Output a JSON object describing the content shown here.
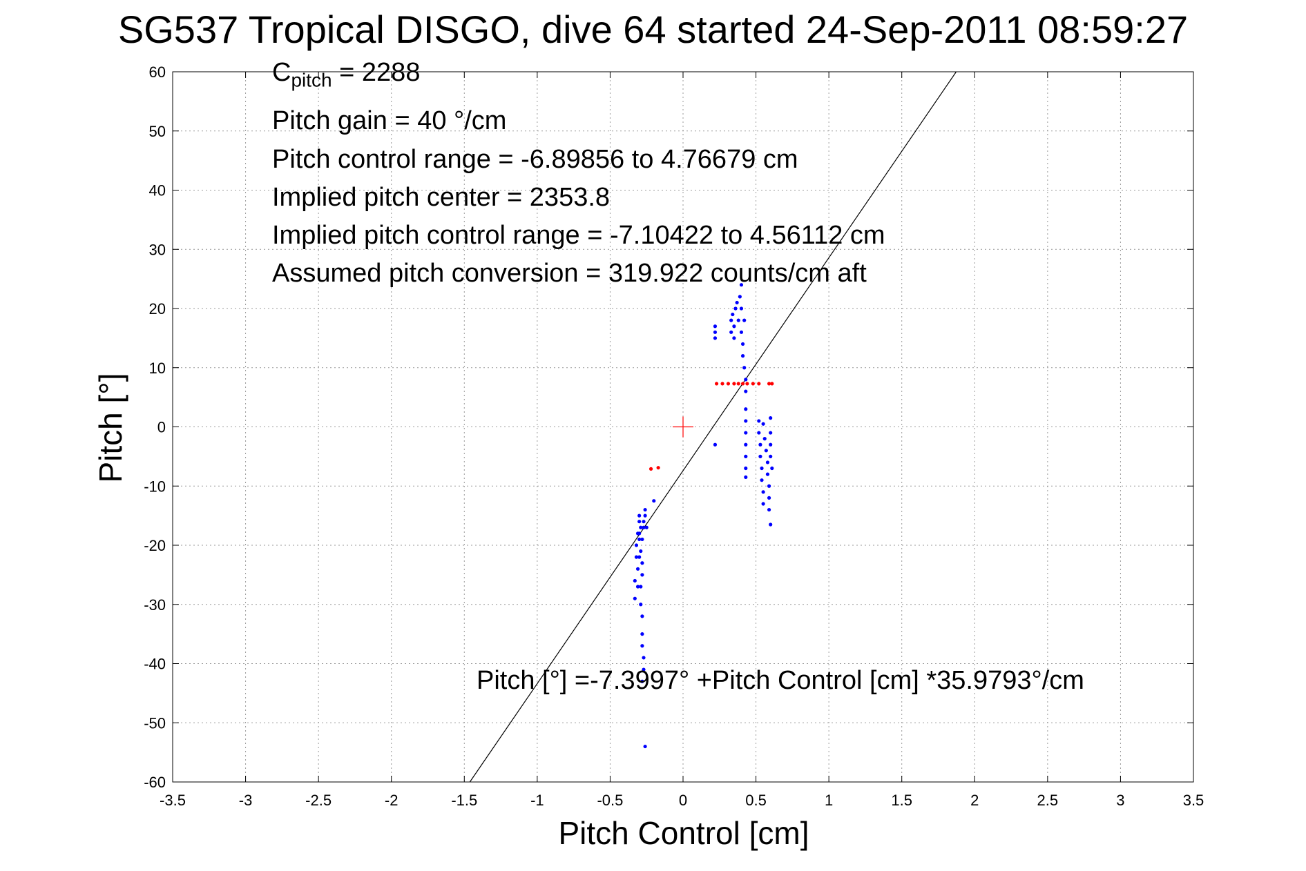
{
  "title": "SG537 Tropical DISGO, dive 64 started 24-Sep-2011 08:59:27",
  "annotations": {
    "c_pitch_prefix": "C",
    "c_pitch_sub": "pitch",
    "c_pitch_value": " = 2288",
    "pitch_gain": "Pitch gain = 40 °/cm",
    "pitch_control_range": "Pitch control range = -6.89856 to 4.76679 cm",
    "implied_pitch_center": "Implied pitch center = 2353.8",
    "implied_pitch_control_range": "Implied pitch control range = -7.10422 to 4.56112 cm",
    "assumed_pitch_conversion": "Assumed pitch conversion = 319.922 counts/cm aft",
    "fit_equation": "Pitch [°] =-7.3997° +Pitch Control [cm] *35.9793°/cm"
  },
  "chart_data": {
    "type": "scatter",
    "title": "SG537 Tropical DISGO, dive 64 started 24-Sep-2011 08:59:27",
    "xlabel": "Pitch Control [cm]",
    "ylabel": "Pitch [°]",
    "xlim": [
      -3.5,
      3.5
    ],
    "ylim": [
      -60,
      60
    ],
    "xticks": [
      -3.5,
      -3,
      -2.5,
      -2,
      -1.5,
      -1,
      -0.5,
      0,
      0.5,
      1,
      1.5,
      2,
      2.5,
      3,
      3.5
    ],
    "xtick_labels": [
      "-3.5",
      "-3",
      "-2.5",
      "-2",
      "-1.5",
      "-1",
      "-0.5",
      "0",
      "0.5",
      "1",
      "1.5",
      "2",
      "2.5",
      "3",
      "3.5"
    ],
    "yticks": [
      -60,
      -50,
      -40,
      -30,
      -20,
      -10,
      0,
      10,
      20,
      30,
      40,
      50,
      60
    ],
    "ytick_labels": [
      "-60",
      "-50",
      "-40",
      "-30",
      "-20",
      "-10",
      "0",
      "10",
      "20",
      "30",
      "40",
      "50",
      "60"
    ],
    "grid": true,
    "colors": {
      "blue": "#0000ff",
      "red": "#ff0000",
      "line": "#000000",
      "grid": "#999999"
    },
    "fit_line": {
      "intercept": -7.3997,
      "slope": 35.9793
    },
    "center_marker": {
      "x": 0,
      "y": 0,
      "color": "#ff0000"
    },
    "series": [
      {
        "color": "#0000ff",
        "points": [
          [
            -0.33,
            -29
          ],
          [
            -0.33,
            -26
          ],
          [
            -0.32,
            -22
          ],
          [
            -0.32,
            -20
          ],
          [
            -0.31,
            -18
          ],
          [
            -0.3,
            -16
          ],
          [
            -0.3,
            -18
          ],
          [
            -0.29,
            -17
          ],
          [
            -0.28,
            -19
          ],
          [
            -0.27,
            -17
          ],
          [
            -0.27,
            -16
          ],
          [
            -0.26,
            -14
          ],
          [
            -0.26,
            -15
          ],
          [
            -0.25,
            -17
          ],
          [
            -0.29,
            -21
          ],
          [
            -0.3,
            -22
          ],
          [
            -0.28,
            -23
          ],
          [
            -0.28,
            -25
          ],
          [
            -0.29,
            -27
          ],
          [
            -0.29,
            -30
          ],
          [
            -0.28,
            -32
          ],
          [
            -0.28,
            -35
          ],
          [
            -0.28,
            -37
          ],
          [
            -0.27,
            -39
          ],
          [
            -0.27,
            -41
          ],
          [
            -0.28,
            -43
          ],
          [
            -0.31,
            -24
          ],
          [
            -0.31,
            -27
          ],
          [
            -0.3,
            -19
          ],
          [
            -0.3,
            -15
          ],
          [
            -0.26,
            -54
          ],
          [
            -0.2,
            -12.5
          ],
          [
            0.22,
            17
          ],
          [
            0.22,
            15
          ],
          [
            0.22,
            16
          ],
          [
            0.33,
            18
          ],
          [
            0.33,
            16
          ],
          [
            0.34,
            19
          ],
          [
            0.35,
            17
          ],
          [
            0.35,
            15
          ],
          [
            0.36,
            20
          ],
          [
            0.37,
            21
          ],
          [
            0.38,
            18
          ],
          [
            0.39,
            22
          ],
          [
            0.4,
            24
          ],
          [
            0.4,
            20
          ],
          [
            0.4,
            16
          ],
          [
            0.41,
            14
          ],
          [
            0.41,
            12
          ],
          [
            0.42,
            18
          ],
          [
            0.42,
            10
          ],
          [
            0.43,
            8
          ],
          [
            0.43,
            6
          ],
          [
            0.43,
            3
          ],
          [
            0.43,
            1
          ],
          [
            0.43,
            -1
          ],
          [
            0.43,
            -3
          ],
          [
            0.43,
            -5
          ],
          [
            0.43,
            -7
          ],
          [
            0.43,
            -8.5
          ],
          [
            0.22,
            -3
          ],
          [
            0.52,
            1
          ],
          [
            0.52,
            -1
          ],
          [
            0.53,
            -3
          ],
          [
            0.53,
            -5
          ],
          [
            0.54,
            -7
          ],
          [
            0.54,
            -9
          ],
          [
            0.55,
            -11
          ],
          [
            0.55,
            -13
          ],
          [
            0.55,
            0.5
          ],
          [
            0.56,
            -2
          ],
          [
            0.57,
            -4
          ],
          [
            0.58,
            -6
          ],
          [
            0.58,
            -8
          ],
          [
            0.59,
            -10
          ],
          [
            0.59,
            -12
          ],
          [
            0.59,
            -14
          ],
          [
            0.6,
            -16.5
          ],
          [
            0.6,
            1.5
          ],
          [
            0.6,
            -1
          ],
          [
            0.6,
            -3
          ],
          [
            0.6,
            -5
          ],
          [
            0.61,
            -7
          ]
        ]
      },
      {
        "color": "#ff0000",
        "points": [
          [
            0.23,
            7.3
          ],
          [
            0.27,
            7.3
          ],
          [
            0.31,
            7.3
          ],
          [
            0.35,
            7.3
          ],
          [
            0.38,
            7.3
          ],
          [
            0.41,
            7.3
          ],
          [
            0.44,
            7.3
          ],
          [
            0.48,
            7.3
          ],
          [
            0.52,
            7.3
          ],
          [
            0.59,
            7.3
          ],
          [
            0.61,
            7.3
          ],
          [
            -0.22,
            -7.1
          ],
          [
            -0.17,
            -6.9
          ]
        ]
      }
    ]
  }
}
